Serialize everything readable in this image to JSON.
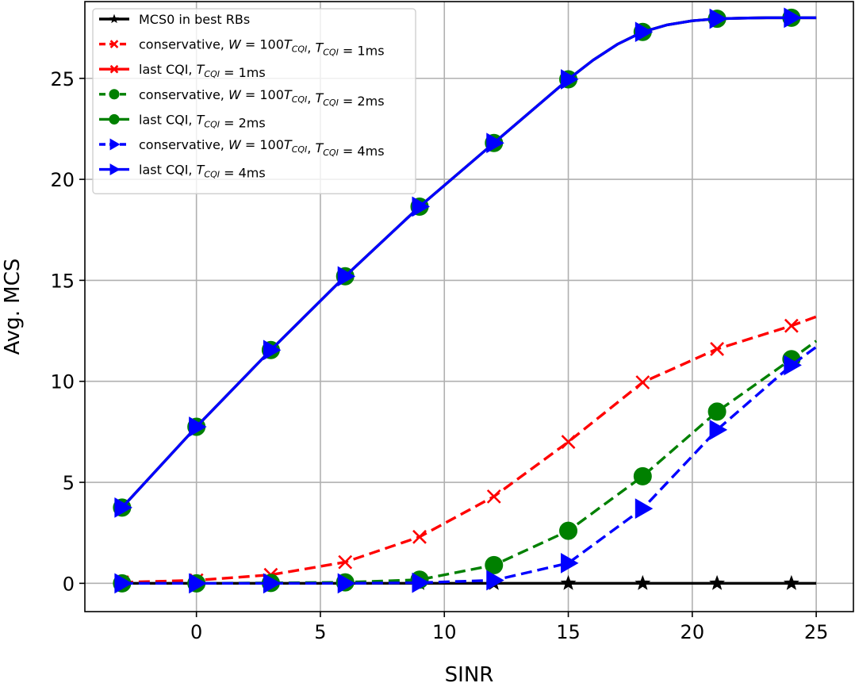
{
  "chart_data": {
    "type": "line",
    "xlabel": "SINR",
    "ylabel": "Avg. MCS",
    "xlim": [
      -4.5,
      26.5
    ],
    "ylim": [
      -1.4,
      28.8
    ],
    "xticks": [
      0,
      5,
      10,
      15,
      20,
      25
    ],
    "yticks": [
      0,
      5,
      10,
      15,
      20,
      25
    ],
    "grid": true,
    "legend_position": "top-left",
    "series": [
      {
        "name": "MCS0 in best RBs",
        "label_parts": [
          {
            "t": "MCS0 in best RBs"
          }
        ],
        "color": "#000000",
        "dash": "solid",
        "marker": "star",
        "line_x": [
          -3,
          25
        ],
        "line_y": [
          0,
          0
        ],
        "x": [
          -3,
          0,
          3,
          6,
          9,
          12,
          15,
          18,
          21,
          24
        ],
        "y": [
          0,
          0,
          0,
          0,
          0,
          0,
          0,
          0,
          0,
          0
        ]
      },
      {
        "name": "conservative, W = 100T_CQI, T_CQI = 1ms",
        "label_parts": [
          {
            "t": "conservative, "
          },
          {
            "t": "W",
            "i": true
          },
          {
            "t": " = 100"
          },
          {
            "t": "T",
            "i": true
          },
          {
            "t": "CQI",
            "i": true,
            "sub": true
          },
          {
            "t": ", "
          },
          {
            "t": "T",
            "i": true
          },
          {
            "t": "CQI",
            "i": true,
            "sub": true
          },
          {
            "t": " = 1ms"
          }
        ],
        "color": "#ff0000",
        "dash": "dashed",
        "marker": "x",
        "line_x": [
          -3,
          0,
          3,
          6,
          9,
          12,
          15,
          18,
          21,
          24,
          25
        ],
        "line_y": [
          0.05,
          0.15,
          0.42,
          1.05,
          2.3,
          4.3,
          7.0,
          9.95,
          11.6,
          12.75,
          13.2
        ],
        "x": [
          -3,
          0,
          3,
          6,
          9,
          12,
          15,
          18,
          21,
          24
        ],
        "y": [
          0.05,
          0.15,
          0.42,
          1.05,
          2.3,
          4.3,
          7.0,
          9.95,
          11.6,
          12.75
        ]
      },
      {
        "name": "last CQI, T_CQI = 1ms",
        "label_parts": [
          {
            "t": "last CQI, "
          },
          {
            "t": "T",
            "i": true
          },
          {
            "t": "CQI",
            "i": true,
            "sub": true
          },
          {
            "t": " = 1ms"
          }
        ],
        "color": "#ff0000",
        "dash": "solid",
        "marker": "x",
        "line_x": [
          -3,
          0,
          3,
          6,
          9,
          12,
          15,
          16,
          17,
          18,
          19,
          20,
          21,
          22,
          23,
          24,
          25
        ],
        "line_y": [
          3.75,
          7.75,
          11.55,
          15.2,
          18.65,
          21.8,
          24.95,
          25.9,
          26.7,
          27.3,
          27.65,
          27.85,
          27.95,
          27.98,
          28.0,
          28.0,
          28.0
        ],
        "x": [
          -3,
          0,
          3,
          6,
          9,
          12,
          15,
          18,
          21,
          24
        ],
        "y": [
          3.75,
          7.75,
          11.55,
          15.2,
          18.65,
          21.8,
          24.95,
          27.3,
          27.95,
          28.0
        ]
      },
      {
        "name": "conservative, W = 100T_CQI, T_CQI = 2ms",
        "label_parts": [
          {
            "t": "conservative, "
          },
          {
            "t": "W",
            "i": true
          },
          {
            "t": " = 100"
          },
          {
            "t": "T",
            "i": true
          },
          {
            "t": "CQI",
            "i": true,
            "sub": true
          },
          {
            "t": ", "
          },
          {
            "t": "T",
            "i": true
          },
          {
            "t": "CQI",
            "i": true,
            "sub": true
          },
          {
            "t": " = 2ms"
          }
        ],
        "color": "#008000",
        "dash": "dashed",
        "marker": "circle",
        "line_x": [
          -3,
          0,
          3,
          6,
          9,
          12,
          15,
          18,
          21,
          24,
          25
        ],
        "line_y": [
          0.0,
          0.0,
          0.02,
          0.05,
          0.18,
          0.9,
          2.6,
          5.3,
          8.5,
          11.1,
          12.0
        ],
        "x": [
          -3,
          0,
          3,
          6,
          9,
          12,
          15,
          18,
          21,
          24
        ],
        "y": [
          0.0,
          0.0,
          0.02,
          0.05,
          0.18,
          0.9,
          2.6,
          5.3,
          8.5,
          11.1
        ]
      },
      {
        "name": "last CQI, T_CQI = 2ms",
        "label_parts": [
          {
            "t": "last CQI, "
          },
          {
            "t": "T",
            "i": true
          },
          {
            "t": "CQI",
            "i": true,
            "sub": true
          },
          {
            "t": " = 2ms"
          }
        ],
        "color": "#008000",
        "dash": "solid",
        "marker": "circle",
        "line_x": [
          -3,
          0,
          3,
          6,
          9,
          12,
          15,
          16,
          17,
          18,
          19,
          20,
          21,
          22,
          23,
          24,
          25
        ],
        "line_y": [
          3.75,
          7.75,
          11.55,
          15.2,
          18.65,
          21.8,
          24.95,
          25.9,
          26.7,
          27.3,
          27.65,
          27.85,
          27.95,
          27.98,
          28.0,
          28.0,
          28.0
        ],
        "x": [
          -3,
          0,
          3,
          6,
          9,
          12,
          15,
          18,
          21,
          24
        ],
        "y": [
          3.75,
          7.75,
          11.55,
          15.2,
          18.65,
          21.8,
          24.95,
          27.3,
          27.95,
          28.0
        ]
      },
      {
        "name": "conservative, W = 100T_CQI, T_CQI = 4ms",
        "label_parts": [
          {
            "t": "conservative, "
          },
          {
            "t": "W",
            "i": true
          },
          {
            "t": " = 100"
          },
          {
            "t": "T",
            "i": true
          },
          {
            "t": "CQI",
            "i": true,
            "sub": true
          },
          {
            "t": ", "
          },
          {
            "t": "T",
            "i": true
          },
          {
            "t": "CQI",
            "i": true,
            "sub": true
          },
          {
            "t": " = 4ms"
          }
        ],
        "color": "#0000ff",
        "dash": "dashed",
        "marker": "triangle-right",
        "line_x": [
          -3,
          0,
          3,
          6,
          9,
          12,
          15,
          18,
          21,
          24,
          25
        ],
        "line_y": [
          0.0,
          0.0,
          0.0,
          0.0,
          0.03,
          0.15,
          1.0,
          3.7,
          7.6,
          10.8,
          11.7
        ],
        "x": [
          -3,
          0,
          3,
          6,
          9,
          12,
          15,
          18,
          21,
          24
        ],
        "y": [
          0.0,
          0.0,
          0.0,
          0.0,
          0.03,
          0.15,
          1.0,
          3.7,
          7.6,
          10.8
        ]
      },
      {
        "name": "last CQI, T_CQI = 4ms",
        "label_parts": [
          {
            "t": "last CQI, "
          },
          {
            "t": "T",
            "i": true
          },
          {
            "t": "CQI",
            "i": true,
            "sub": true
          },
          {
            "t": " = 4ms"
          }
        ],
        "color": "#0000ff",
        "dash": "solid",
        "marker": "triangle-right",
        "line_x": [
          -3,
          0,
          3,
          6,
          9,
          12,
          15,
          16,
          17,
          18,
          19,
          20,
          21,
          22,
          23,
          24,
          25
        ],
        "line_y": [
          3.75,
          7.75,
          11.55,
          15.2,
          18.65,
          21.8,
          24.95,
          25.9,
          26.7,
          27.3,
          27.65,
          27.85,
          27.95,
          27.98,
          28.0,
          28.0,
          28.0
        ],
        "x": [
          -3,
          0,
          3,
          6,
          9,
          12,
          15,
          18,
          21,
          24
        ],
        "y": [
          3.75,
          7.75,
          11.55,
          15.2,
          18.65,
          21.8,
          24.95,
          27.3,
          27.95,
          28.0
        ]
      }
    ]
  }
}
